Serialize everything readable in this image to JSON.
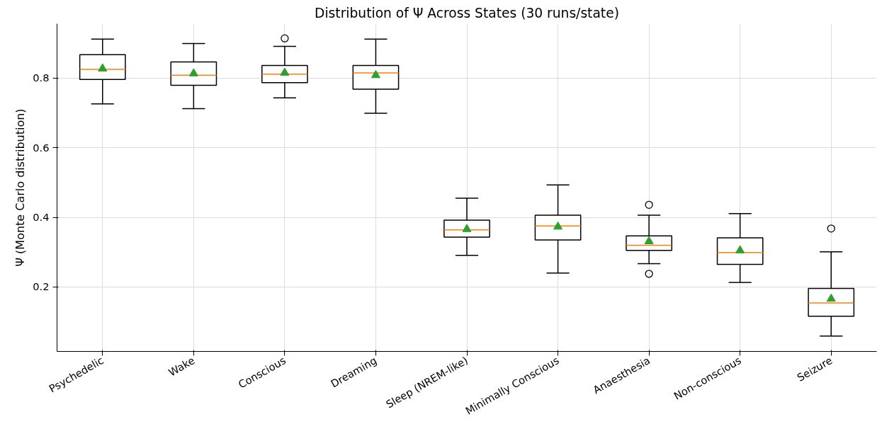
{
  "chart_data": {
    "type": "box",
    "title": "Distribution of Ψ Across States (30 runs/state)",
    "ylabel": "Ψ (Monte Carlo distribution)",
    "categories": [
      "Psychedelic",
      "Wake",
      "Conscious",
      "Dreaming",
      "Sleep (NREM-like)",
      "Minimally Conscious",
      "Anaesthesia",
      "Non-conscious",
      "Seizure"
    ],
    "boxes": [
      {
        "low": 0.726,
        "q1": 0.796,
        "median": 0.825,
        "q3": 0.867,
        "high": 0.912,
        "mean": 0.827
      },
      {
        "low": 0.712,
        "q1": 0.779,
        "median": 0.808,
        "q3": 0.846,
        "high": 0.899,
        "mean": 0.813
      },
      {
        "low": 0.743,
        "q1": 0.787,
        "median": 0.811,
        "q3": 0.836,
        "high": 0.891,
        "mean": 0.815,
        "outliers": [
          0.914
        ]
      },
      {
        "low": 0.699,
        "q1": 0.768,
        "median": 0.815,
        "q3": 0.836,
        "high": 0.912,
        "mean": 0.808
      },
      {
        "low": 0.291,
        "q1": 0.343,
        "median": 0.364,
        "q3": 0.392,
        "high": 0.455,
        "mean": 0.366
      },
      {
        "low": 0.24,
        "q1": 0.335,
        "median": 0.375,
        "q3": 0.406,
        "high": 0.493,
        "mean": 0.373
      },
      {
        "low": 0.267,
        "q1": 0.305,
        "median": 0.32,
        "q3": 0.347,
        "high": 0.406,
        "mean": 0.331,
        "outliers": [
          0.436,
          0.238
        ]
      },
      {
        "low": 0.213,
        "q1": 0.265,
        "median": 0.299,
        "q3": 0.341,
        "high": 0.411,
        "mean": 0.305
      },
      {
        "low": 0.059,
        "q1": 0.116,
        "median": 0.154,
        "q3": 0.196,
        "high": 0.301,
        "mean": 0.166,
        "outliers": [
          0.368
        ]
      }
    ],
    "ylim": [
      0.015,
      0.956
    ],
    "yticks": [
      0.2,
      0.4,
      0.6,
      0.8
    ],
    "grid": true,
    "marker": "triangle"
  }
}
